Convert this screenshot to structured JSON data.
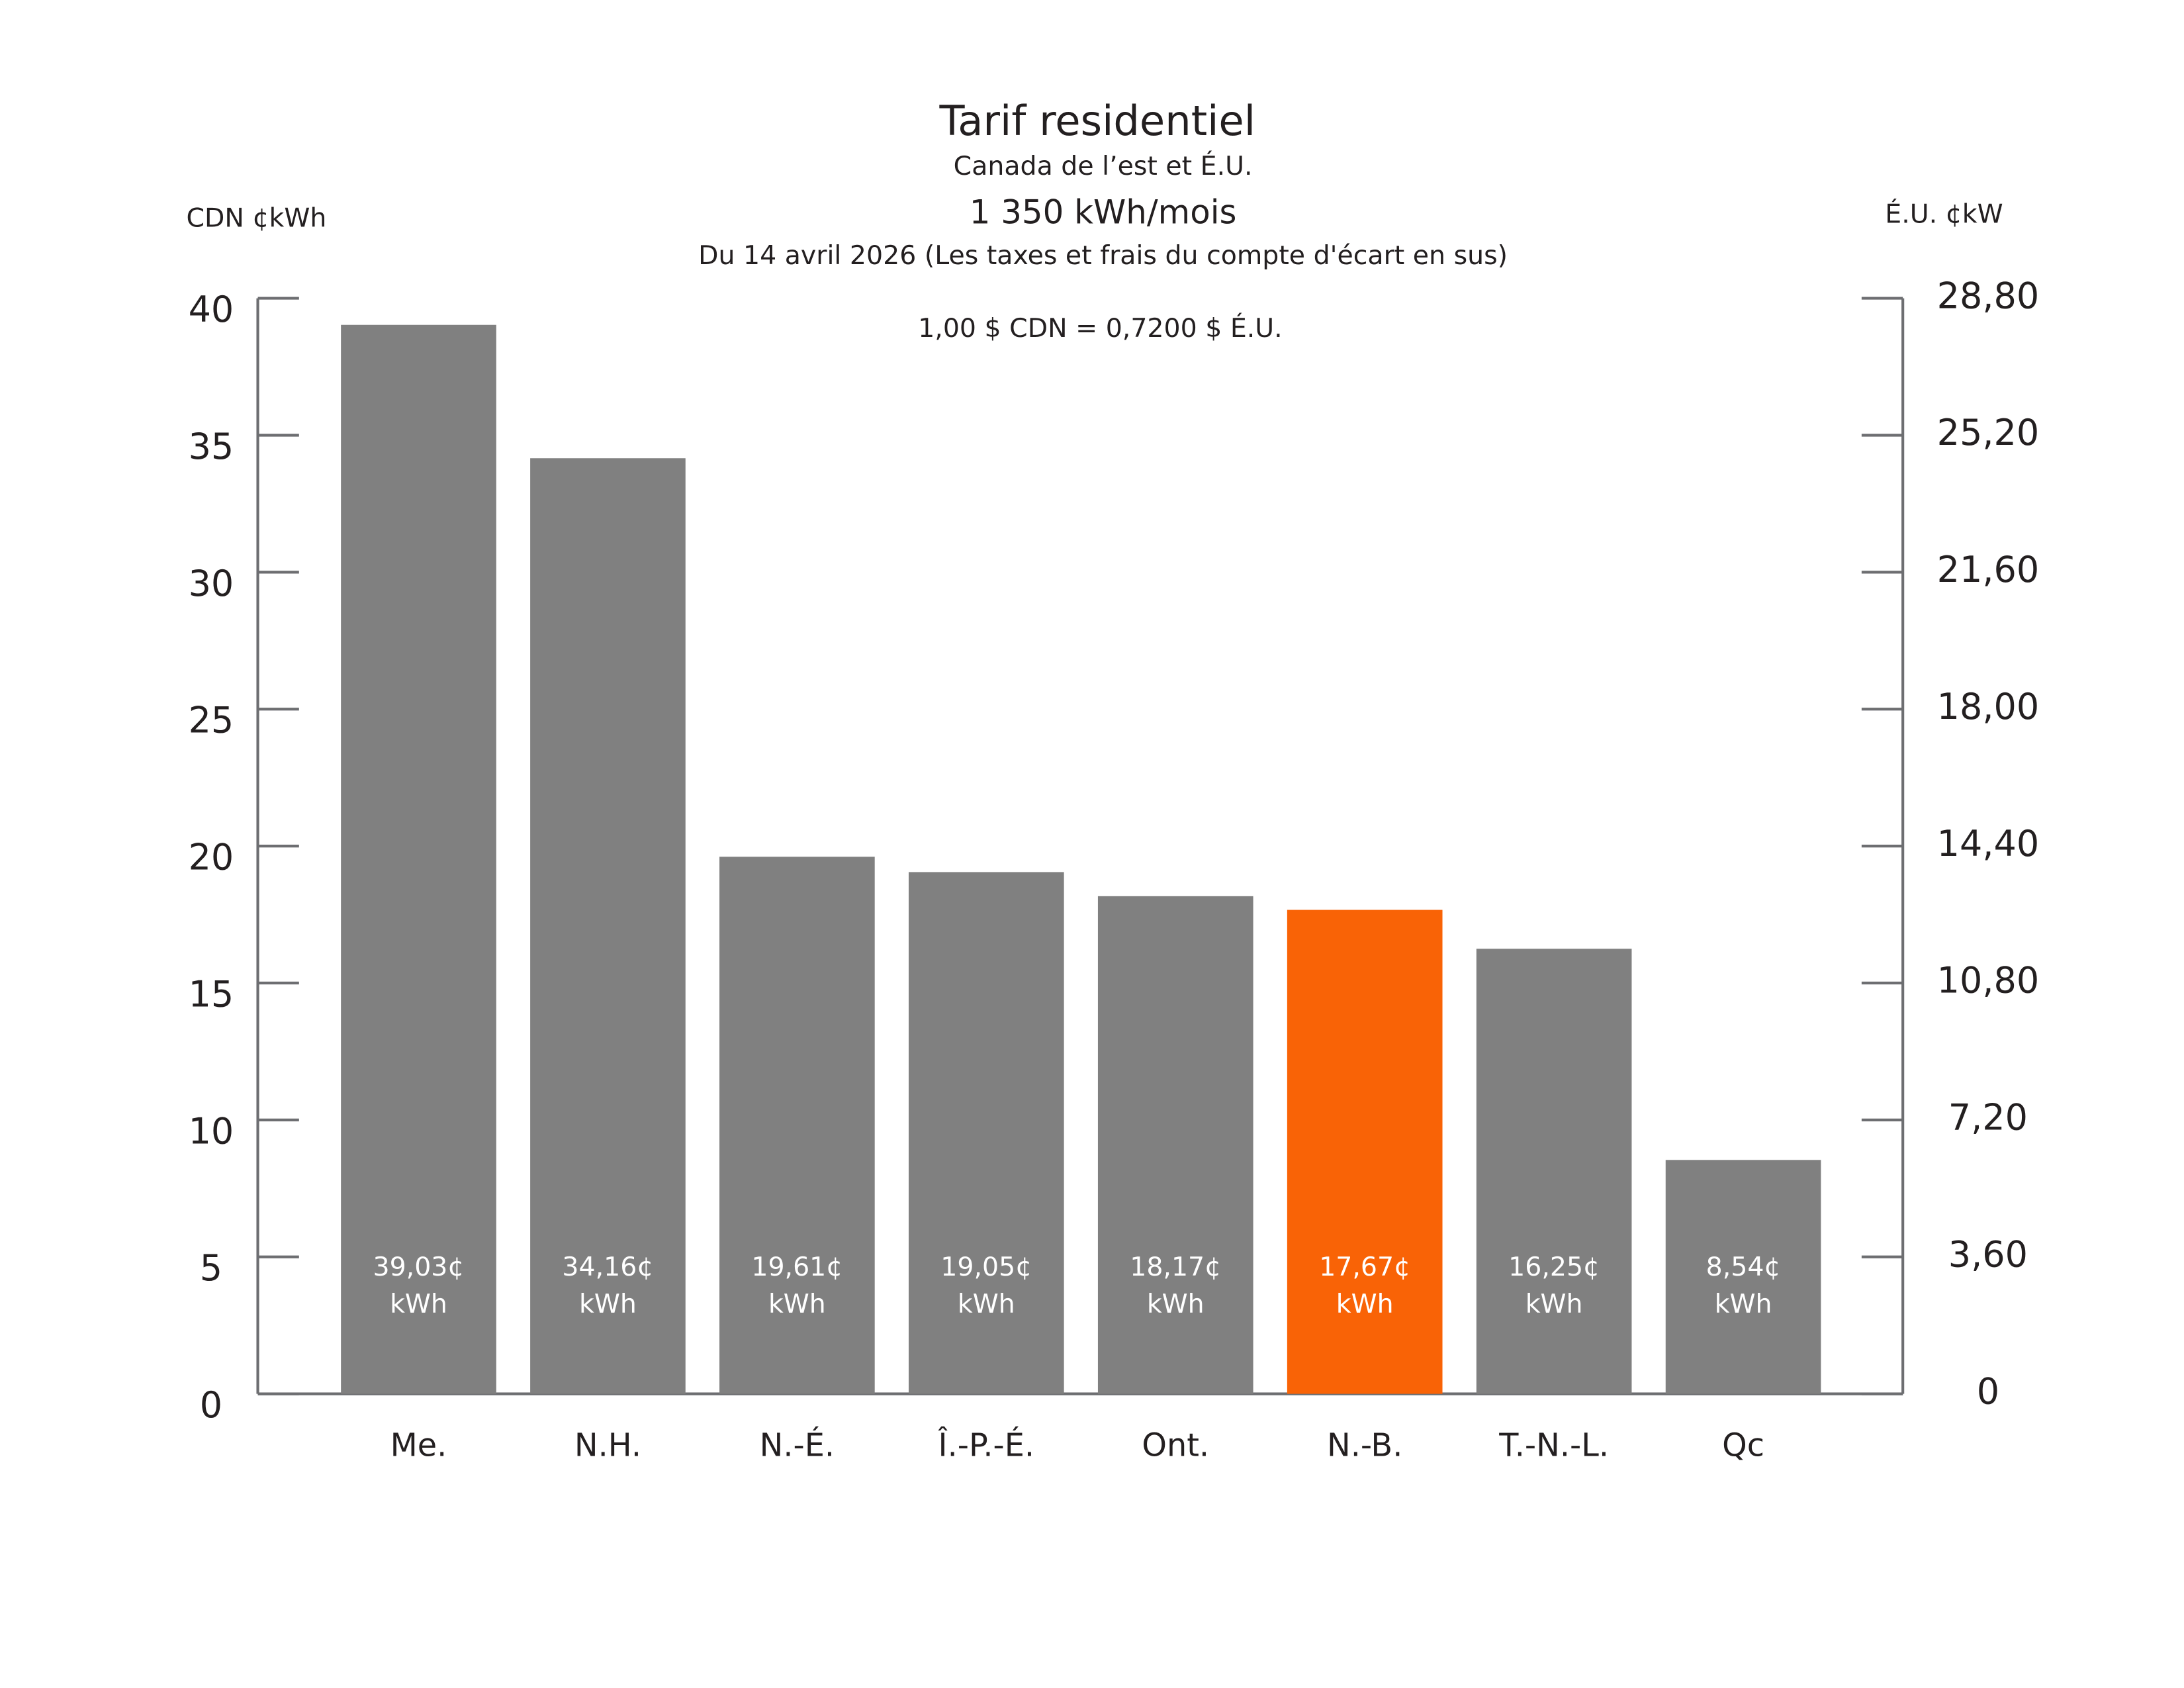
{
  "chart_data": {
    "type": "bar",
    "title": "Tarif residentiel",
    "subtitle": "Canada de l’est et É.U.",
    "subtitle2": "1 350 kWh/mois",
    "subtitle3": "Du 14 avril 2026 (Les taxes et frais du compte d'écart en sus)",
    "annotation": "1,00 $ CDN = 0,7200 $ É.U.",
    "ylabel": "CDN ¢kWh",
    "y2label": "É.U. ¢kW",
    "categories": [
      "Me.",
      "N.H.",
      "N.-É.",
      "Î.-P.-É.",
      "Ont.",
      "N.-B.",
      "T.-N.-L.",
      "Qc"
    ],
    "values": [
      39.03,
      34.16,
      19.61,
      19.05,
      18.17,
      17.67,
      16.25,
      8.54
    ],
    "value_labels": [
      "39,03¢",
      "34,16¢",
      "19,61¢",
      "19,05¢",
      "18,17¢",
      "17,67¢",
      "16,25¢",
      "8,54¢"
    ],
    "value_label_unit": "kWh",
    "colors": [
      "#808080",
      "#808080",
      "#808080",
      "#808080",
      "#808080",
      "#f96306",
      "#808080",
      "#808080"
    ],
    "ylim": [
      0,
      40
    ],
    "yticks": [
      0,
      5,
      10,
      15,
      20,
      25,
      30,
      35,
      40
    ],
    "y2lim": [
      0,
      28.8
    ],
    "y2ticks": [
      0,
      {
        "value": 3.6,
        "label": "3,60"
      },
      {
        "value": 7.2,
        "label": "7,20"
      },
      {
        "value": 10.8,
        "label": "10,80"
      },
      {
        "value": 14.4,
        "label": "14,40"
      },
      {
        "value": 18,
        "label": "18,00"
      },
      {
        "value": 21.6,
        "label": "21,60"
      },
      {
        "value": 25.2,
        "label": "25,20"
      },
      {
        "value": 28.8,
        "label": "28,80"
      }
    ]
  }
}
